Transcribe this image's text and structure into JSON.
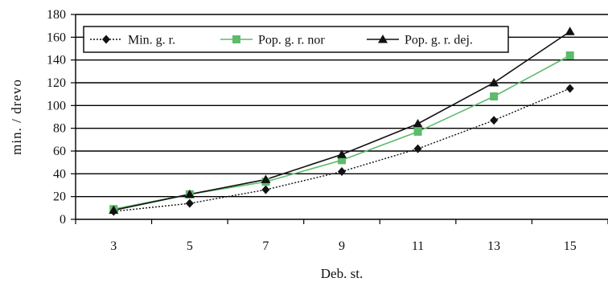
{
  "chart_data": {
    "type": "line",
    "title": "",
    "xlabel": "Deb. st.",
    "ylabel": "min. / drevo",
    "x": [
      3,
      5,
      7,
      9,
      11,
      13,
      15
    ],
    "ylim": [
      0,
      180
    ],
    "yticks": [
      0,
      20,
      40,
      60,
      80,
      100,
      120,
      140,
      160,
      180
    ],
    "grid": "horizontal",
    "legend_position": "top-left",
    "series": [
      {
        "name": "Min. g. r.",
        "values": [
          7,
          14,
          26,
          42,
          62,
          87,
          115
        ],
        "color": "#111111",
        "marker": "diamond",
        "line": "dotted"
      },
      {
        "name": "Pop. g. r. nor",
        "values": [
          9,
          22,
          33,
          52,
          77,
          108,
          144
        ],
        "color": "#5dbb6a",
        "marker": "square",
        "line": "solid"
      },
      {
        "name": "Pop. g. r. dej.",
        "values": [
          8,
          22,
          35,
          57,
          84,
          120,
          165
        ],
        "color": "#111111",
        "marker": "triangle",
        "line": "solid"
      }
    ]
  }
}
